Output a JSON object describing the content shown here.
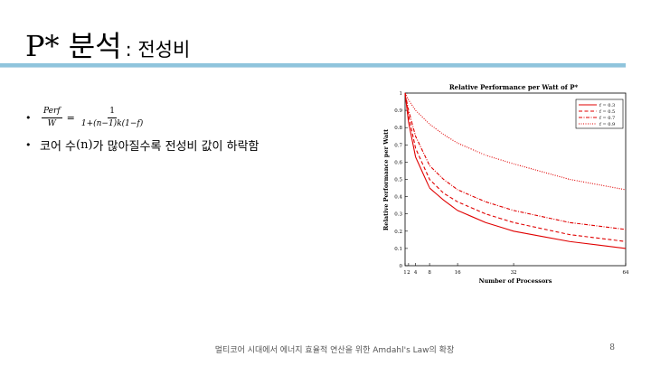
{
  "slide": {
    "title_main": "P* 분석",
    "title_sub": ": 전성비",
    "bullets": {
      "formula": {
        "lhs_num": "Perf",
        "lhs_den": "W",
        "eq": "=",
        "rhs_num": "1",
        "rhs_den": "1+(n−1)k(1−f)"
      },
      "line2_pre": "코어 수",
      "line2_n": "(n)",
      "line2_post": "가 많아질수록 전성비 값이 하락함"
    },
    "footer": "멀티코어 시대에서 에너지 효율적 연산을 위한 Amdahl's Law의 확장",
    "page_number": "8"
  },
  "chart_data": {
    "type": "line",
    "title": "Relative Performance per Watt of P*",
    "xlabel": "Number of Processors",
    "ylabel": "Relative Performance per Watt",
    "xlim": [
      1,
      64
    ],
    "ylim": [
      0,
      1
    ],
    "xticks": [
      1,
      2,
      4,
      8,
      16,
      32,
      64
    ],
    "xtick_labels": [
      "1",
      "2",
      "4",
      "8",
      "16",
      "32",
      "64"
    ],
    "yticks": [
      0,
      0.1,
      0.2,
      0.3,
      0.4,
      0.5,
      0.6,
      0.7,
      0.8,
      0.9,
      1
    ],
    "ytick_labels": [
      "0",
      "0.1",
      "0.2",
      "0.3",
      "0.4",
      "0.5",
      "0.6",
      "0.7",
      "0.8",
      "0.9",
      "1"
    ],
    "legend": "top-right",
    "color": "#e00000",
    "series": [
      {
        "name": "f = 0.3",
        "dash": "solid",
        "x": [
          1,
          2,
          4,
          8,
          12,
          16,
          24,
          32,
          48,
          64
        ],
        "y": [
          1,
          0.83,
          0.63,
          0.45,
          0.38,
          0.32,
          0.25,
          0.2,
          0.14,
          0.1
        ]
      },
      {
        "name": "f = 0.5",
        "dash": "dashed",
        "x": [
          1,
          2,
          4,
          8,
          12,
          16,
          24,
          32,
          48,
          64
        ],
        "y": [
          1,
          0.87,
          0.68,
          0.5,
          0.42,
          0.37,
          0.3,
          0.25,
          0.18,
          0.14
        ]
      },
      {
        "name": "f = 0.7",
        "dash": "dashdot",
        "x": [
          1,
          2,
          4,
          8,
          12,
          16,
          24,
          32,
          48,
          64
        ],
        "y": [
          1,
          0.9,
          0.75,
          0.58,
          0.5,
          0.44,
          0.37,
          0.32,
          0.25,
          0.21
        ]
      },
      {
        "name": "f = 0.9",
        "dash": "dotted",
        "x": [
          1,
          2,
          4,
          8,
          12,
          16,
          24,
          32,
          48,
          64
        ],
        "y": [
          1,
          0.96,
          0.9,
          0.82,
          0.76,
          0.71,
          0.64,
          0.59,
          0.5,
          0.44
        ]
      }
    ]
  }
}
